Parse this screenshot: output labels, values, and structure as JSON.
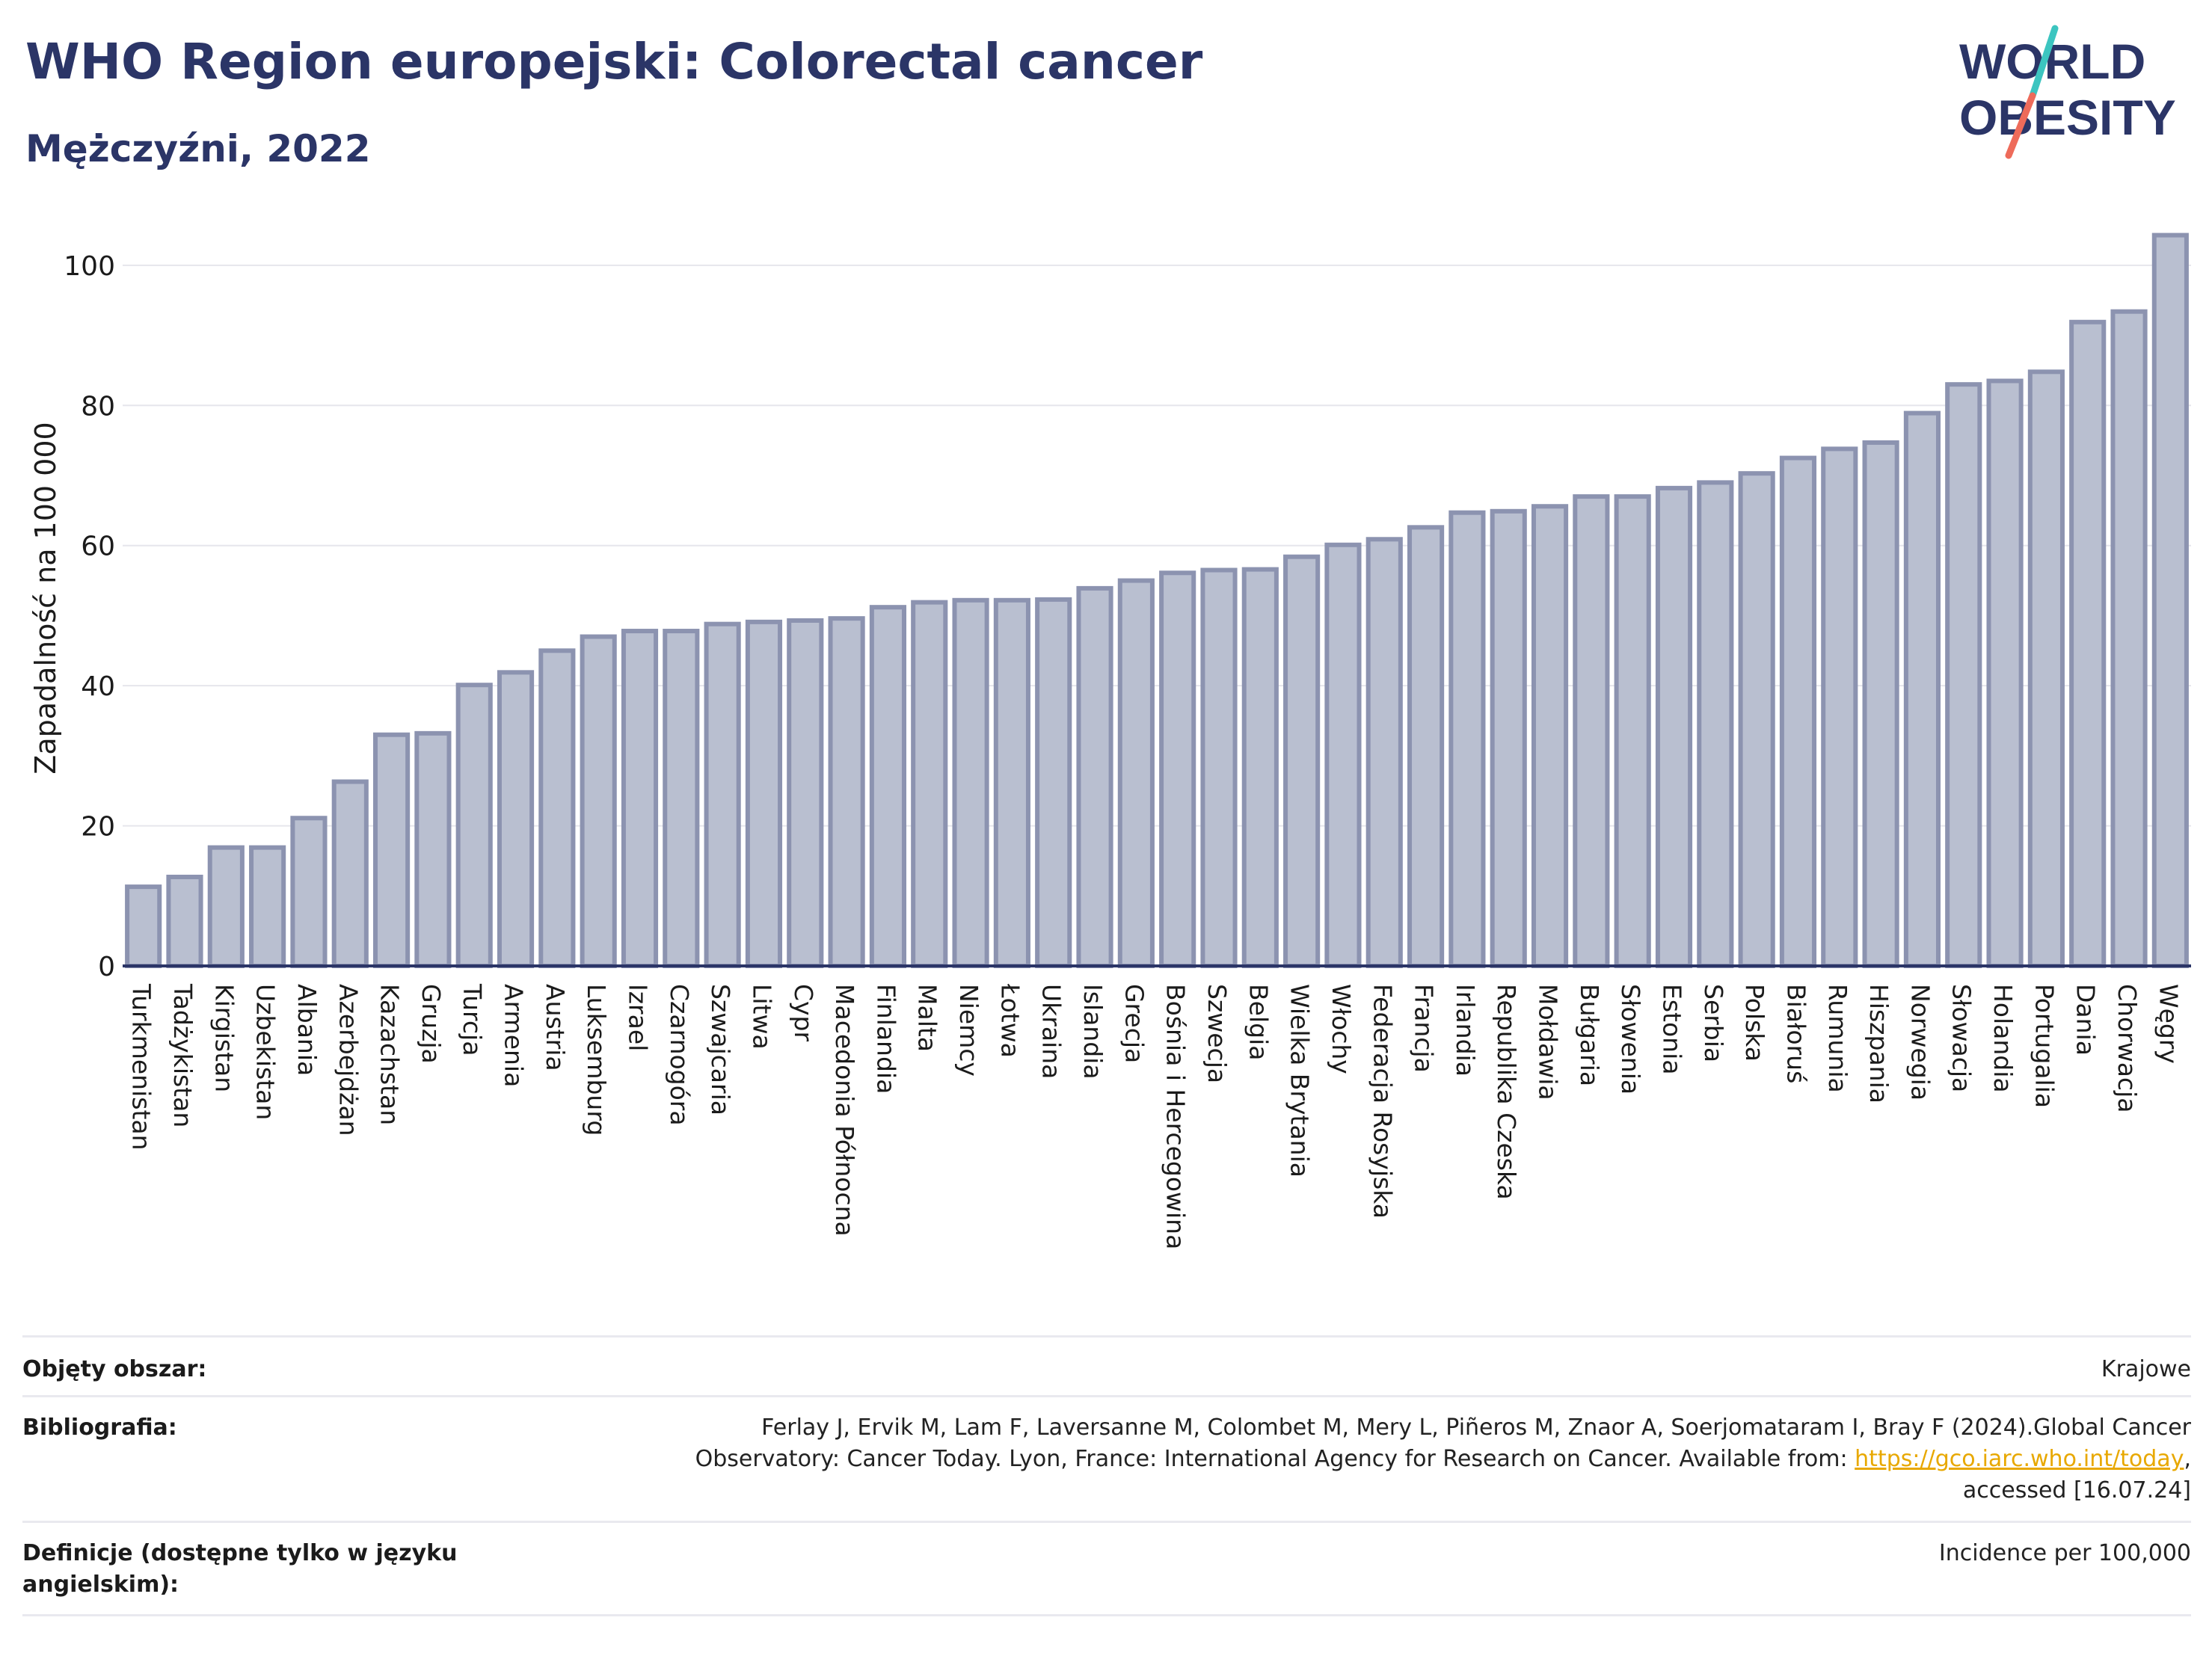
{
  "header": {
    "title": "WHO Region europejski: Colorectal cancer",
    "subtitle": "Mężczyźni, 2022"
  },
  "logo": {
    "line1": "WORLD",
    "line2": "OBESITY",
    "colors": {
      "text": "#2b3567",
      "slash_top": "#3cc5c0",
      "slash_bottom": "#ee6b5a"
    }
  },
  "chart_data": {
    "type": "bar",
    "title": "WHO Region europejski: Colorectal cancer",
    "subtitle": "Mężczyźni, 2022",
    "ylabel": "Zapadalność na 100 000",
    "xlabel": "",
    "ylim": [
      0,
      105
    ],
    "yticks": [
      0,
      20,
      40,
      60,
      80,
      100
    ],
    "grid": true,
    "bar_fill": "#b9bfd0",
    "bar_stroke": "#8c93b0",
    "axis_color": "#2b3567",
    "categories": [
      "Turkmenistan",
      "Tadżykistan",
      "Kirgistan",
      "Uzbekistan",
      "Albania",
      "Azerbejdżan",
      "Kazachstan",
      "Gruzja",
      "Turcja",
      "Armenia",
      "Austria",
      "Luksemburg",
      "Izrael",
      "Czarnogóra",
      "Szwajcaria",
      "Litwa",
      "Cypr",
      "Macedonia Północna",
      "Finlandia",
      "Malta",
      "Niemcy",
      "Łotwa",
      "Ukraina",
      "Islandia",
      "Grecja",
      "Bośnia i Hercegowina",
      "Szwecja",
      "Belgia",
      "Wielka Brytania",
      "Włochy",
      "Federacja Rosyjska",
      "Francja",
      "Irlandia",
      "Republika Czeska",
      "Mołdawia",
      "Bułgaria",
      "Słowenia",
      "Estonia",
      "Serbia",
      "Polska",
      "Białoruś",
      "Rumunia",
      "Hiszpania",
      "Norwegia",
      "Słowacja",
      "Holandia",
      "Portugalia",
      "Dania",
      "Chorwacja",
      "Węgry"
    ],
    "values": [
      11.3,
      12.7,
      16.9,
      16.9,
      21.1,
      26.3,
      33.0,
      33.2,
      40.1,
      41.9,
      45.0,
      47.0,
      47.8,
      47.8,
      48.8,
      49.1,
      49.3,
      49.6,
      51.2,
      51.9,
      52.2,
      52.2,
      52.3,
      53.9,
      55.0,
      56.1,
      56.5,
      56.6,
      58.4,
      60.1,
      60.9,
      62.6,
      64.7,
      64.9,
      65.6,
      67.0,
      67.0,
      68.2,
      69.0,
      70.3,
      72.5,
      73.8,
      74.7,
      78.9,
      83.0,
      83.5,
      84.8,
      91.9,
      93.4,
      104.3
    ]
  },
  "footer": {
    "rows": [
      {
        "label": "Objęty obszar:",
        "value": "Krajowe"
      },
      {
        "label": "Bibliografia:",
        "line1": "Ferlay J, Ervik M, Lam F, Laversanne M, Colombet M, Mery L, Piñeros M, Znaor A, Soerjomataram I, Bray F (2024).Global Cancer",
        "line2_pre": "Observatory: Cancer Today. Lyon, France: International Agency for Research on Cancer. Available from: ",
        "link": "https://gco.iarc.who.int/today",
        "line2_post": ",",
        "line3": "accessed [16.07.24]"
      },
      {
        "label": "Definicje (dostępne tylko w języku angielskim):",
        "value": "Incidence per 100,000"
      }
    ]
  }
}
